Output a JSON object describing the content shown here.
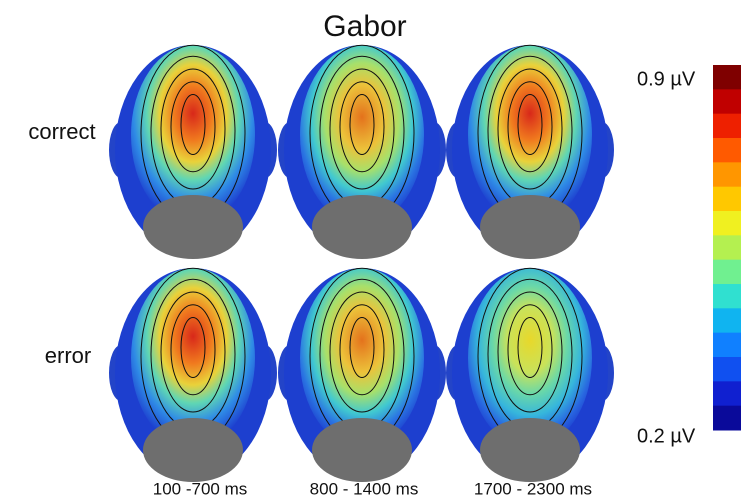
{
  "title": "Gabor",
  "rows": [
    "correct",
    "error"
  ],
  "columns": [
    "100 -700 ms",
    "800 - 1400 ms",
    "1700 - 2300 ms"
  ],
  "colorbar": {
    "max": "0.9 µV",
    "min": "0.2 µV"
  }
}
